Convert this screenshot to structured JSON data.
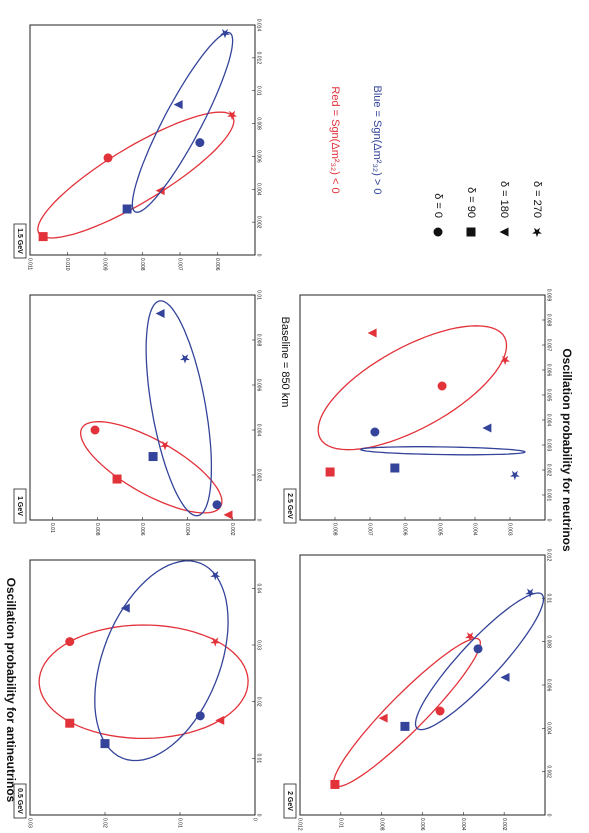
{
  "figure": {
    "subtitle": "Baseline = 850 km",
    "xlabel": "Oscillation probability for neutrinos",
    "ylabel": "Oscillation probability for antineutrinos"
  },
  "legend": {
    "series": [
      {
        "label": "Red = Sgn(Δm²₃₂) < 0",
        "color": "#e2323a"
      },
      {
        "label": "Blue = Sgn(Δm²₃₂) > 0",
        "color": "#34449a"
      }
    ],
    "phases": [
      "δ = 0",
      "δ = 90",
      "δ = 180",
      "δ = 270"
    ],
    "markers": [
      "circle",
      "square",
      "triangle",
      "star"
    ]
  },
  "chart_data": [
    {
      "type": "scatter",
      "title": "1.5 GeV",
      "xlim": [
        0.005,
        0.011
      ],
      "xticks": [
        0.006,
        0.007,
        0.008,
        0.009,
        {
          "value": 0.01,
          "label": "0.010"
        },
        0.011
      ],
      "ylim": [
        0,
        0.014
      ],
      "yticks": [
        0,
        0.002,
        0.004,
        0.006,
        0.008,
        0.01,
        0.012,
        0.014
      ],
      "series": [
        {
          "color": "#e2323a",
          "x": [
            0.00892,
            0.01065,
            0.00753,
            0.00561
          ],
          "values": [
            0.00591,
            0.00112,
            0.00392,
            0.00852
          ]
        },
        {
          "color": "#34449a",
          "x": [
            0.00647,
            0.00841,
            0.00705,
            0.0058
          ],
          "values": [
            0.00684,
            0.0028,
            0.00915,
            0.0135
          ]
        }
      ]
    },
    {
      "type": "scatter",
      "title": "1 GeV",
      "xlim": [
        0.001,
        0.011
      ],
      "xticks": [
        0.002,
        0.004,
        0.006,
        0.008,
        0.01
      ],
      "ylim": [
        0,
        0.01
      ],
      "yticks": [
        0,
        0.002,
        0.004,
        0.006,
        0.008,
        0.01
      ],
      "series": [
        {
          "color": "#e2323a",
          "x": [
            0.00811,
            0.00713,
            0.0022,
            0.005
          ],
          "values": [
            0.004,
            0.00182,
            0.00023,
            0.00332
          ]
        },
        {
          "color": "#34449a",
          "x": [
            0.00269,
            0.00553,
            0.00522,
            0.00411
          ],
          "values": [
            0.00068,
            0.00282,
            0.00918,
            0.00718
          ]
        }
      ]
    },
    {
      "type": "scatter",
      "title": "0.5 GeV",
      "xlim": [
        0,
        0.03
      ],
      "xticks": [
        0,
        0.01,
        0.02,
        0.03
      ],
      "ylim": [
        0,
        0.045
      ],
      "yticks": [
        0,
        0.01,
        0.02,
        0.03,
        0.04
      ],
      "series": [
        {
          "color": "#e2323a",
          "x": [
            0.0247,
            0.0247,
            0.0047,
            0.0053
          ],
          "values": [
            0.0306,
            0.0162,
            0.0167,
            0.0306
          ]
        },
        {
          "color": "#34449a",
          "x": [
            0.0073,
            0.02,
            0.0173,
            0.0053
          ],
          "values": [
            0.0175,
            0.0126,
            0.0365,
            0.0423
          ]
        }
      ]
    },
    {
      "type": "scatter",
      "title": "2.5 GeV",
      "xlim": [
        0.002,
        0.009
      ],
      "xticks": [
        0.003,
        0.004,
        0.005,
        0.006,
        0.007,
        0.008
      ],
      "ylim": [
        0,
        0.009
      ],
      "yticks": [
        0,
        0.001,
        0.002,
        0.003,
        0.004,
        0.005,
        0.006,
        0.007,
        0.008,
        0.009
      ],
      "series": [
        {
          "color": "#e2323a",
          "x": [
            0.00494,
            0.00814,
            0.00694,
            0.00314
          ],
          "values": [
            0.00536,
            0.00192,
            0.00748,
            0.0064
          ]
        },
        {
          "color": "#34449a",
          "x": [
            0.00686,
            0.00629,
            0.00366,
            0.00286
          ],
          "values": [
            0.00352,
            0.00208,
            0.00368,
            0.0018
          ]
        }
      ]
    },
    {
      "type": "scatter",
      "title": "2 GeV",
      "xlim": [
        0,
        0.012
      ],
      "xticks": [
        0.002,
        0.004,
        0.006,
        0.008,
        0.01,
        0.012
      ],
      "ylim": [
        0,
        0.012
      ],
      "yticks": [
        0,
        0.002,
        0.004,
        0.006,
        0.008,
        0.01,
        0.012
      ],
      "series": [
        {
          "color": "#e2323a",
          "x": [
            0.00514,
            0.01029,
            0.00793,
            0.00367
          ],
          "values": [
            0.0048,
            0.00141,
            0.00447,
            0.00824
          ]
        },
        {
          "color": "#34449a",
          "x": [
            0.00328,
            0.00686,
            0.00196,
            0.00073
          ],
          "values": [
            0.00767,
            0.00409,
            0.00635,
            0.01026
          ]
        }
      ]
    }
  ]
}
